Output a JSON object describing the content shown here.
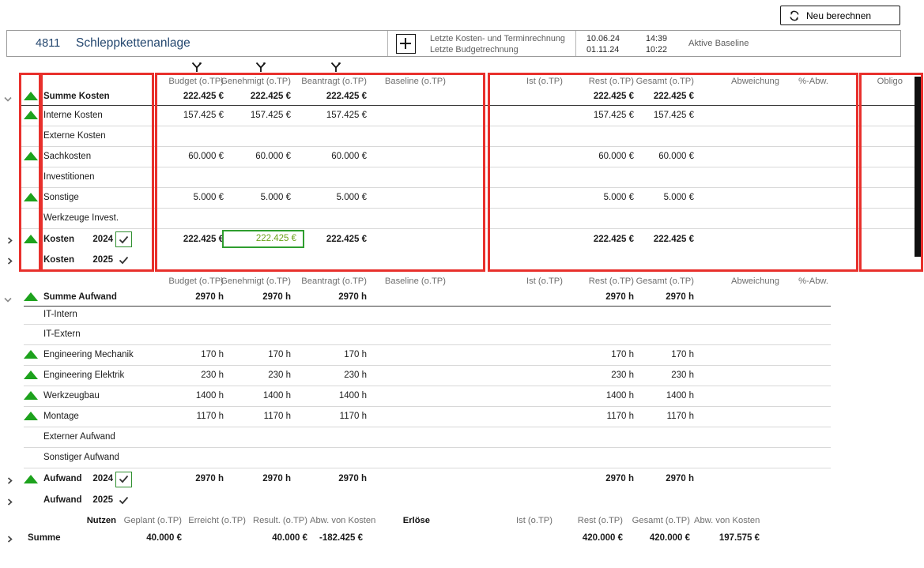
{
  "toolbar": {
    "recalculate_label": "Neu berechnen"
  },
  "header": {
    "project_id": "4811",
    "project_name": "Schleppkettenanlage",
    "last_cost_schedule_calc_label": "Letzte Kosten- und Terminrechnung",
    "last_cost_schedule_calc_date": "10.06.24",
    "last_cost_schedule_calc_time": "14:39",
    "last_budget_calc_label": "Letzte Budgetrechnung",
    "last_budget_calc_date": "01.11.24",
    "last_budget_calc_time": "10:22",
    "active_baseline_label": "Aktive Baseline"
  },
  "costs": {
    "columns": [
      {
        "key": "budget",
        "label": "Budget (o.TP)"
      },
      {
        "key": "genehmigt",
        "label": "Genehmigt (o.TP)"
      },
      {
        "key": "beantragt",
        "label": "Beantragt (o.TP)"
      },
      {
        "key": "baseline",
        "label": "Baseline (o.TP)"
      },
      {
        "key": "ist",
        "label": "Ist (o.TP)"
      },
      {
        "key": "rest",
        "label": "Rest (o.TP)"
      },
      {
        "key": "gesamt",
        "label": "Gesamt (o.TP)"
      },
      {
        "key": "abweichung",
        "label": "Abweichung"
      },
      {
        "key": "pabw",
        "label": "%-Abw."
      },
      {
        "key": "obligo",
        "label": "Obligo"
      }
    ],
    "rows": [
      {
        "label": "Summe Kosten",
        "bold": true,
        "triangle": true,
        "chevron": "down",
        "values": {
          "budget": "222.425 €",
          "genehmigt": "222.425 €",
          "beantragt": "222.425 €",
          "rest": "222.425 €",
          "gesamt": "222.425 €"
        }
      },
      {
        "label": "Interne Kosten",
        "triangle": true,
        "values": {
          "budget": "157.425 €",
          "genehmigt": "157.425 €",
          "beantragt": "157.425 €",
          "rest": "157.425 €",
          "gesamt": "157.425 €"
        }
      },
      {
        "label": "Externe Kosten",
        "values": {}
      },
      {
        "label": "Sachkosten",
        "triangle": true,
        "values": {
          "budget": "60.000 €",
          "genehmigt": "60.000 €",
          "beantragt": "60.000 €",
          "rest": "60.000 €",
          "gesamt": "60.000 €"
        }
      },
      {
        "label": "Investitionen",
        "values": {}
      },
      {
        "label": "Sonstige",
        "triangle": true,
        "values": {
          "budget": "5.000 €",
          "genehmigt": "5.000 €",
          "beantragt": "5.000 €",
          "rest": "5.000 €",
          "gesamt": "5.000 €"
        }
      },
      {
        "label": "Werkzeuge Invest.",
        "values": {}
      },
      {
        "label": "Kosten",
        "year": "2024",
        "checkbox": "checked-highlight",
        "bold": true,
        "triangle": true,
        "chevron": "right",
        "highlight_genehmigt": true,
        "values": {
          "budget": "222.425 €",
          "genehmigt": "222.425 €",
          "beantragt": "222.425 €",
          "rest": "222.425 €",
          "gesamt": "222.425 €"
        }
      },
      {
        "label": "Kosten",
        "year": "2025",
        "checkbox": "checked",
        "bold": true,
        "chevron": "right",
        "values": {}
      }
    ]
  },
  "effort": {
    "columns": [
      {
        "key": "budget",
        "label": "Budget (o.TP)"
      },
      {
        "key": "genehmigt",
        "label": "Genehmigt (o.TP)"
      },
      {
        "key": "beantragt",
        "label": "Beantragt (o.TP)"
      },
      {
        "key": "baseline",
        "label": "Baseline (o.TP)"
      },
      {
        "key": "ist",
        "label": "Ist (o.TP)"
      },
      {
        "key": "rest",
        "label": "Rest (o.TP)"
      },
      {
        "key": "gesamt",
        "label": "Gesamt (o.TP)"
      },
      {
        "key": "abweichung",
        "label": "Abweichung"
      },
      {
        "key": "pabw",
        "label": "%-Abw."
      }
    ],
    "rows": [
      {
        "label": "Summe Aufwand",
        "bold": true,
        "triangle": true,
        "chevron": "down",
        "values": {
          "budget": "2970 h",
          "genehmigt": "2970 h",
          "beantragt": "2970 h",
          "rest": "2970 h",
          "gesamt": "2970 h"
        }
      },
      {
        "label": "IT-Intern",
        "values": {}
      },
      {
        "label": "IT-Extern",
        "values": {}
      },
      {
        "label": "Engineering Mechanik",
        "triangle": true,
        "values": {
          "budget": "170 h",
          "genehmigt": "170 h",
          "beantragt": "170 h",
          "rest": "170 h",
          "gesamt": "170 h"
        }
      },
      {
        "label": "Engineering Elektrik",
        "triangle": true,
        "values": {
          "budget": "230 h",
          "genehmigt": "230 h",
          "beantragt": "230 h",
          "rest": "230 h",
          "gesamt": "230 h"
        }
      },
      {
        "label": "Werkzeugbau",
        "triangle": true,
        "values": {
          "budget": "1400 h",
          "genehmigt": "1400 h",
          "beantragt": "1400 h",
          "rest": "1400 h",
          "gesamt": "1400 h"
        }
      },
      {
        "label": "Montage",
        "triangle": true,
        "values": {
          "budget": "1170 h",
          "genehmigt": "1170 h",
          "beantragt": "1170 h",
          "rest": "1170 h",
          "gesamt": "1170 h"
        }
      },
      {
        "label": "Externer Aufwand",
        "values": {}
      },
      {
        "label": "Sonstiger Aufwand",
        "values": {}
      },
      {
        "label": "Aufwand",
        "year": "2024",
        "checkbox": "checked-highlight",
        "bold": true,
        "triangle": true,
        "chevron": "right",
        "values": {
          "budget": "2970 h",
          "genehmigt": "2970 h",
          "beantragt": "2970 h",
          "rest": "2970 h",
          "gesamt": "2970 h"
        }
      },
      {
        "label": "Aufwand",
        "year": "2025",
        "checkbox": "checked",
        "bold": true,
        "chevron": "right",
        "values": {}
      }
    ]
  },
  "benefit": {
    "columns": [
      {
        "key": "nutzen",
        "label": "Nutzen",
        "strong": true
      },
      {
        "key": "geplant",
        "label": "Geplant (o.TP)"
      },
      {
        "key": "erreicht",
        "label": "Erreicht (o.TP)"
      },
      {
        "key": "result",
        "label": "Result. (o.TP)"
      },
      {
        "key": "abwk1",
        "label": "Abw. von Kosten"
      },
      {
        "key": "erloese",
        "label": "Erlöse",
        "strong": true
      },
      {
        "key": "ist",
        "label": "Ist (o.TP)"
      },
      {
        "key": "rest",
        "label": "Rest (o.TP)"
      },
      {
        "key": "gesamt",
        "label": "Gesamt (o.TP)"
      },
      {
        "key": "abwk2",
        "label": "Abw. von Kosten"
      }
    ],
    "rows": [
      {
        "label": "Summe",
        "bold": true,
        "chevron": "right",
        "values": {
          "geplant": "40.000 €",
          "result": "40.000 €",
          "abwk1": "-182.425 €",
          "rest": "420.000 €",
          "gesamt": "420.000 €",
          "abwk2": "197.575 €"
        }
      }
    ]
  }
}
